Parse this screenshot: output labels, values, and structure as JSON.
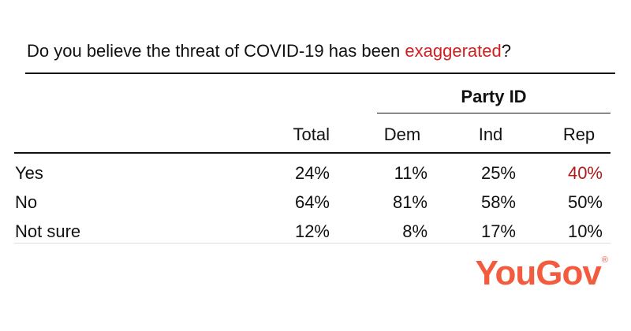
{
  "question": {
    "prefix": "Do you believe the threat of COVID-19 has been ",
    "highlight": "exaggerated",
    "suffix": "?"
  },
  "brand": {
    "name": "YouGov",
    "mark": "®"
  },
  "colors": {
    "highlight": "#d11f1f",
    "rep_highlight": "#b01a1a",
    "brand": "#f35b3f"
  },
  "chart_data": {
    "type": "table",
    "title": "Do you believe the threat of COVID-19 has been exaggerated?",
    "group_label": "Party ID",
    "columns": [
      "Total",
      "Dem",
      "Ind",
      "Rep"
    ],
    "rows": [
      {
        "label": "Yes",
        "values": [
          "24%",
          "11%",
          "25%",
          "40%"
        ]
      },
      {
        "label": "No",
        "values": [
          "64%",
          "81%",
          "58%",
          "50%"
        ]
      },
      {
        "label": "Not sure",
        "values": [
          "12%",
          "8%",
          "17%",
          "10%"
        ]
      }
    ],
    "highlighted_cell": {
      "row": "Yes",
      "column": "Rep"
    }
  }
}
